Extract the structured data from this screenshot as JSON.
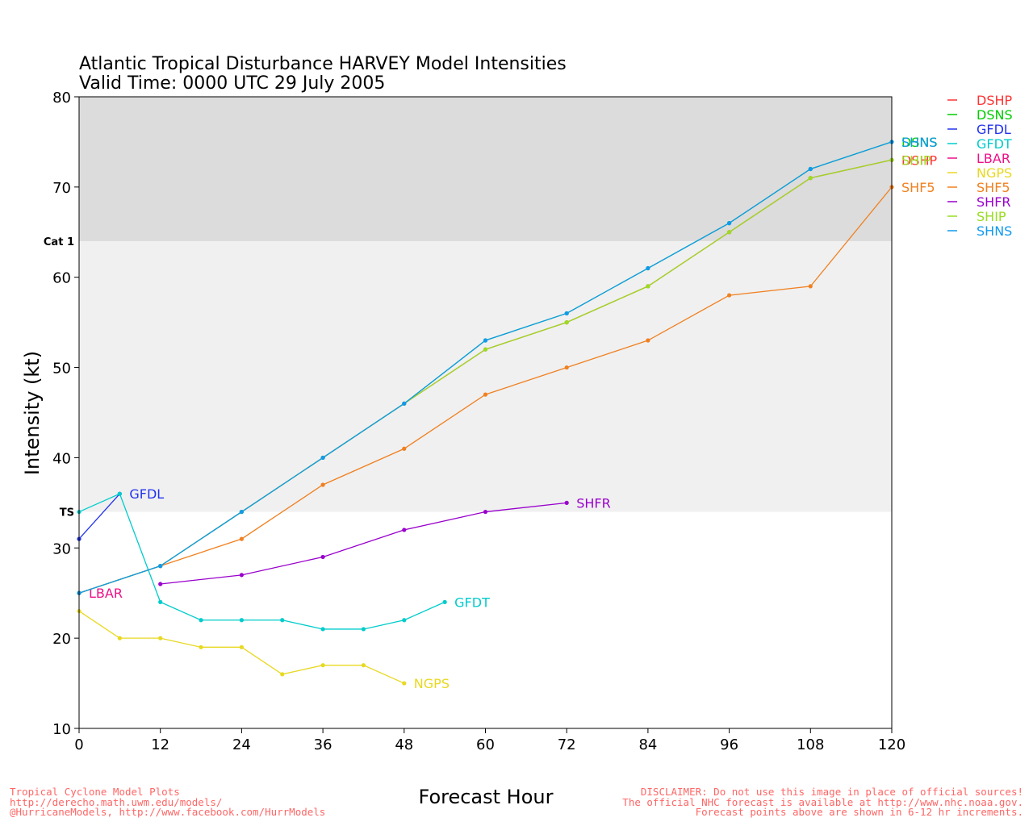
{
  "title_line1": "Atlantic Tropical Disturbance HARVEY Model Intensities",
  "title_line2": "Valid Time: 0000 UTC 29 July 2005",
  "footer_left": [
    "Tropical Cyclone Model Plots",
    "http://derecho.math.uwm.edu/models/",
    "@HurricaneModels, http://www.facebook.com/HurrModels"
  ],
  "footer_right": [
    "DISCLAIMER: Do not use this image in place of official sources!",
    "The official NHC forecast is available at http://www.nhc.noaa.gov.",
    "Forecast points above are shown in 6-12 hr increments."
  ],
  "chart_data": {
    "type": "line",
    "title": "Atlantic Tropical Disturbance HARVEY Model Intensities",
    "subtitle": "Valid Time: 0000 UTC 29 July 2005",
    "xlabel": "Forecast Hour",
    "ylabel": "Intensity (kt)",
    "xlim": [
      0,
      120
    ],
    "ylim": [
      10,
      80
    ],
    "xticks": [
      0,
      12,
      24,
      36,
      48,
      60,
      72,
      84,
      96,
      108,
      120
    ],
    "yticks": [
      10,
      20,
      30,
      40,
      50,
      60,
      70,
      80
    ],
    "bands": [
      {
        "label": "TS",
        "from": 34,
        "to": 64,
        "color": "#f0f0f0"
      },
      {
        "label": "Cat 1",
        "from": 64,
        "to": 80,
        "color": "#dcdcdc"
      }
    ],
    "legend_position": "right",
    "series": [
      {
        "name": "DSHP",
        "color": "#ff3333",
        "x": [
          0,
          12,
          24,
          36,
          48,
          60,
          72,
          84,
          96,
          108,
          120
        ],
        "y": [
          25,
          28,
          34,
          40,
          46,
          52,
          55,
          59,
          65,
          71,
          73
        ],
        "end_label": "DSHP"
      },
      {
        "name": "DSNS",
        "color": "#00cc00",
        "x": [
          0,
          12,
          24,
          36,
          48,
          60,
          72,
          84,
          96,
          108,
          120
        ],
        "y": [
          25,
          28,
          34,
          40,
          46,
          53,
          56,
          61,
          66,
          72,
          75
        ],
        "end_label": "DSNS"
      },
      {
        "name": "GFDL",
        "color": "#2233ee",
        "x": [
          0,
          6
        ],
        "y": [
          31,
          36
        ],
        "end_label": "GFDL"
      },
      {
        "name": "GFDT",
        "color": "#00cccc",
        "x": [
          0,
          6,
          12,
          18,
          24,
          30,
          36,
          42,
          48,
          54
        ],
        "y": [
          34,
          36,
          24,
          22,
          22,
          22,
          21,
          21,
          22,
          24
        ],
        "end_label": "GFDT"
      },
      {
        "name": "LBAR",
        "color": "#ee1188",
        "x": [
          0
        ],
        "y": [
          25
        ],
        "end_label": "LBAR"
      },
      {
        "name": "NGPS",
        "color": "#e8d820",
        "x": [
          0,
          6,
          12,
          18,
          24,
          30,
          36,
          42,
          48
        ],
        "y": [
          23,
          20,
          20,
          19,
          19,
          16,
          17,
          17,
          15
        ],
        "end_label": "NGPS"
      },
      {
        "name": "SHF5",
        "color": "#f08020",
        "x": [
          0,
          12,
          24,
          36,
          48,
          60,
          72,
          84,
          96,
          108,
          120
        ],
        "y": [
          25,
          28,
          31,
          37,
          41,
          47,
          50,
          53,
          58,
          59,
          70
        ],
        "end_label": "SHF5"
      },
      {
        "name": "SHFR",
        "color": "#9900cc",
        "x": [
          12,
          24,
          36,
          48,
          60,
          72
        ],
        "y": [
          26,
          27,
          29,
          32,
          34,
          35
        ],
        "end_label": "SHFR"
      },
      {
        "name": "SHIP",
        "color": "#99dd22",
        "x": [
          0,
          12,
          24,
          36,
          48,
          60,
          72,
          84,
          96,
          108,
          120
        ],
        "y": [
          25,
          28,
          34,
          40,
          46,
          52,
          55,
          59,
          65,
          71,
          73
        ],
        "end_label": "SHIP"
      },
      {
        "name": "SHNS",
        "color": "#1199ee",
        "x": [
          0,
          12,
          24,
          36,
          48,
          60,
          72,
          84,
          96,
          108,
          120
        ],
        "y": [
          25,
          28,
          34,
          40,
          46,
          53,
          56,
          61,
          66,
          72,
          75
        ],
        "end_label": "SHNS"
      }
    ]
  }
}
